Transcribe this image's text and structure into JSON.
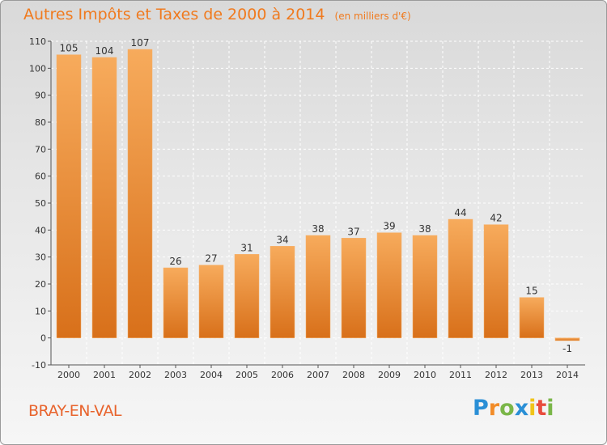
{
  "header": {
    "title": "Autres Impôts et Taxes de 2000 à 2014",
    "subtitle": "(en milliers d'€)"
  },
  "footer": {
    "town": "BRAY-EN-VAL",
    "logo": "Proxiti",
    "logo_letters": [
      {
        "ch": "P",
        "color": "#2a8fd6"
      },
      {
        "ch": "r",
        "color": "#f28c28"
      },
      {
        "ch": "o",
        "color": "#7ab648"
      },
      {
        "ch": "x",
        "color": "#2a8fd6"
      },
      {
        "ch": "i",
        "color": "#f0c419"
      },
      {
        "ch": "t",
        "color": "#e84c3d"
      },
      {
        "ch": "i",
        "color": "#7ab648"
      }
    ]
  },
  "chart_data": {
    "type": "bar",
    "title": "Autres Impôts et Taxes de 2000 à 2014",
    "subtitle": "(en milliers d'€)",
    "categories": [
      "2000",
      "2001",
      "2002",
      "2003",
      "2004",
      "2005",
      "2006",
      "2007",
      "2008",
      "2009",
      "2010",
      "2011",
      "2012",
      "2013",
      "2014"
    ],
    "values": [
      105,
      104,
      107,
      26,
      27,
      31,
      34,
      38,
      37,
      39,
      38,
      44,
      42,
      15,
      -1
    ],
    "data_labels": [
      "105",
      "104",
      "107",
      "26",
      "27",
      "31",
      "34",
      "38",
      "37",
      "39",
      "38",
      "44",
      "42",
      "15",
      "-1"
    ],
    "ylim": [
      -10,
      110
    ],
    "yticks": [
      -10,
      0,
      10,
      20,
      30,
      40,
      50,
      60,
      70,
      80,
      90,
      100,
      110
    ],
    "bar_color": "#f28c28",
    "bar_color_light": "#f5a85a",
    "bar_color_dark": "#d9741a",
    "grid": true,
    "legend": "none"
  }
}
